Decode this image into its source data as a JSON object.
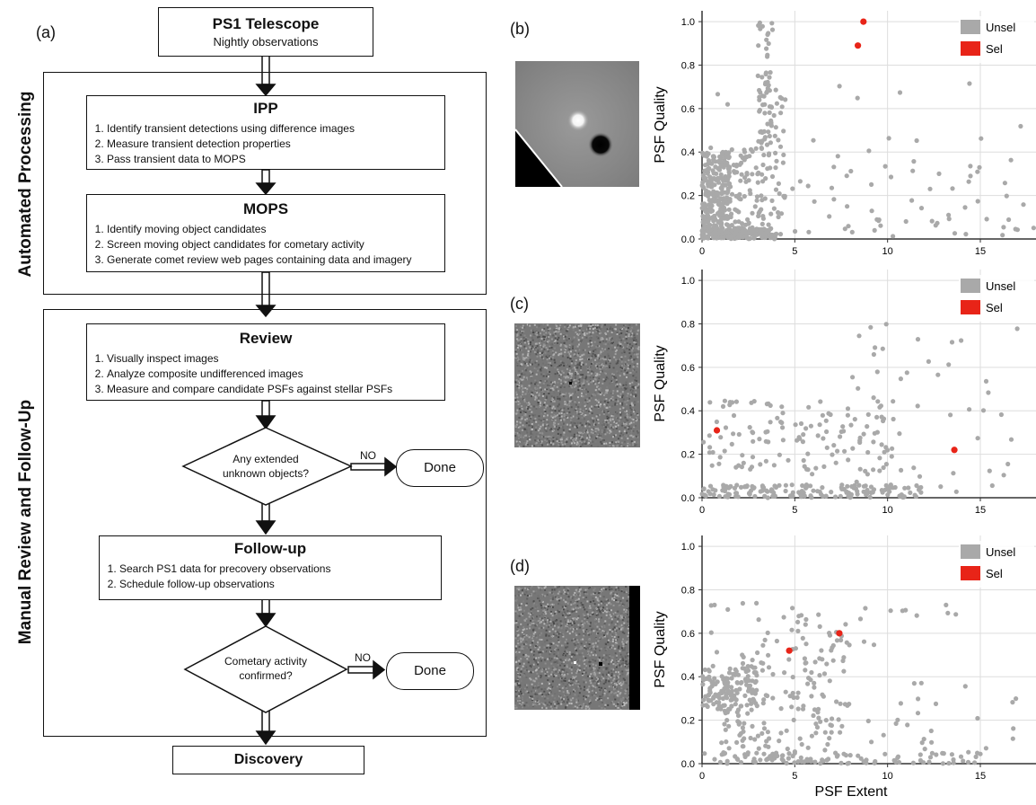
{
  "labels": {
    "a": "(a)",
    "b": "(b)",
    "c": "(c)",
    "d": "(d)"
  },
  "flowchart": {
    "telescope": {
      "title": "PS1 Telescope",
      "subtitle": "Nightly observations"
    },
    "automated_label": "Automated  Processing",
    "manual_label": "Manual Review and Follow-Up",
    "ipp": {
      "title": "IPP",
      "items": [
        "Identify transient detections using difference images",
        "Measure transient detection properties",
        "Pass transient data to MOPS"
      ]
    },
    "mops": {
      "title": "MOPS",
      "items": [
        "Identify moving object candidates",
        "Screen moving object candidates for cometary activity",
        "Generate comet review web pages containing data and imagery"
      ]
    },
    "review": {
      "title": "Review",
      "items": [
        "Visually inspect images",
        "Analyze composite undifferenced images",
        "Measure and compare candidate PSFs against stellar PSFs"
      ]
    },
    "decision1": {
      "line1": "Any extended",
      "line2": "unknown objects?",
      "no": "NO",
      "done": "Done"
    },
    "followup": {
      "title": "Follow-up",
      "items": [
        "Search PS1 data for precovery observations",
        "Schedule follow-up observations"
      ]
    },
    "decision2": {
      "line1": "Cometary activity",
      "line2": "confirmed?",
      "no": "NO",
      "done": "Done"
    },
    "discovery": "Discovery"
  },
  "colors": {
    "unsel": "#a9a9a9",
    "sel": "#e82418",
    "grid": "#dddddd"
  },
  "chart_data": [
    {
      "type": "scatter",
      "ylabel": "PSF Quality",
      "xlabel": "",
      "xlim": [
        0,
        18
      ],
      "ylim": [
        0,
        1.05
      ],
      "xticks": [
        0,
        5,
        10,
        15
      ],
      "yticks": [
        0.0,
        0.2,
        0.4,
        0.6,
        0.8,
        1.0
      ],
      "grid": true,
      "legend_position": "top-right",
      "series": [
        {
          "name": "Unsel",
          "points": [],
          "count": 700
        },
        {
          "name": "Sel",
          "points": [
            [
              8.7,
              1.0
            ],
            [
              8.4,
              0.89
            ]
          ]
        }
      ]
    },
    {
      "type": "scatter",
      "ylabel": "PSF Quality",
      "xlabel": "",
      "xlim": [
        0,
        18
      ],
      "ylim": [
        0,
        1.05
      ],
      "xticks": [
        0,
        5,
        10,
        15
      ],
      "yticks": [
        0.0,
        0.2,
        0.4,
        0.6,
        0.8,
        1.0
      ],
      "grid": true,
      "legend_position": "top-right",
      "series": [
        {
          "name": "Unsel",
          "points": [],
          "count": 330
        },
        {
          "name": "Sel",
          "points": [
            [
              0.8,
              0.31
            ],
            [
              13.6,
              0.22
            ]
          ]
        }
      ]
    },
    {
      "type": "scatter",
      "ylabel": "PSF Quality",
      "xlabel": "PSF Extent",
      "xlim": [
        0,
        18
      ],
      "ylim": [
        0,
        1.05
      ],
      "xticks": [
        0,
        5,
        10,
        15
      ],
      "yticks": [
        0.0,
        0.2,
        0.4,
        0.6,
        0.8,
        1.0
      ],
      "grid": true,
      "legend_position": "top-right",
      "series": [
        {
          "name": "Unsel",
          "points": [],
          "count": 450
        },
        {
          "name": "Sel",
          "points": [
            [
              4.7,
              0.52
            ],
            [
              7.4,
              0.6
            ]
          ]
        }
      ]
    }
  ]
}
